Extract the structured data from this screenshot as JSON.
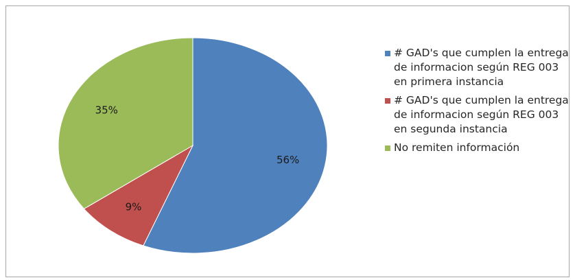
{
  "chart_data": {
    "type": "pie",
    "title": "",
    "slices": [
      {
        "label": "# GAD's que cumplen la entrega de informacion según REG 003 en primera instancia",
        "value": 56,
        "display": "56%",
        "color": "#4F81BD"
      },
      {
        "label": "# GAD's que cumplen la entrega de informacion según REG 003 en segunda instancia",
        "value": 9,
        "display": "9%",
        "color": "#C0504D"
      },
      {
        "label": "No remiten información",
        "value": 35,
        "display": "35%",
        "color": "#9BBB59"
      }
    ],
    "legend_position": "right"
  }
}
